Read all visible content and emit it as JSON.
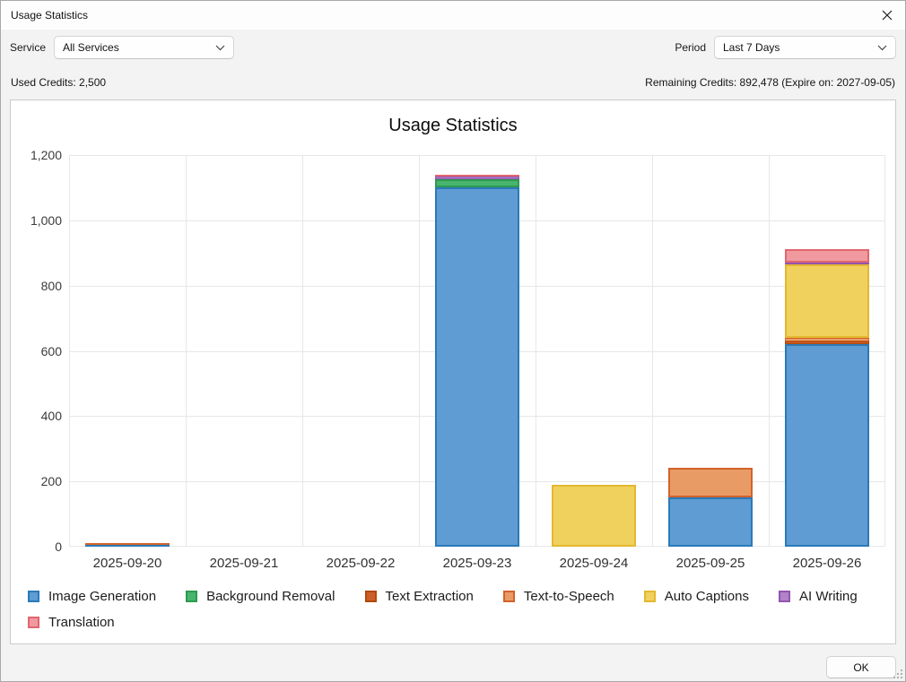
{
  "window": {
    "title": "Usage Statistics"
  },
  "filters": {
    "service_label": "Service",
    "service_value": "All Services",
    "period_label": "Period",
    "period_value": "Last 7 Days"
  },
  "credits": {
    "used": "Used Credits: 2,500",
    "remaining": "Remaining Credits: 892,478 (Expire on: 2027-09-05)"
  },
  "footer": {
    "ok_label": "OK"
  },
  "chart_data": {
    "type": "bar",
    "stacked": true,
    "title": "Usage Statistics",
    "categories": [
      "2025-09-20",
      "2025-09-21",
      "2025-09-22",
      "2025-09-23",
      "2025-09-24",
      "2025-09-25",
      "2025-09-26"
    ],
    "series": [
      {
        "name": "Image Generation",
        "fill": "#5e9cd3",
        "border": "#2a7ab9",
        "values": [
          5,
          0,
          0,
          1100,
          0,
          150,
          620
        ]
      },
      {
        "name": "Background Removal",
        "fill": "#47b56e",
        "border": "#2d9a50",
        "values": [
          0,
          0,
          0,
          25,
          0,
          0,
          0
        ]
      },
      {
        "name": "Text Extraction",
        "fill": "#ce5f29",
        "border": "#b04a0a",
        "values": [
          0,
          0,
          0,
          0,
          0,
          0,
          8
        ]
      },
      {
        "name": "Text-to-Speech",
        "fill": "#e99b66",
        "border": "#d2622a",
        "values": [
          3,
          0,
          0,
          0,
          0,
          90,
          10
        ]
      },
      {
        "name": "Auto Captions",
        "fill": "#f0d15e",
        "border": "#e4b82f",
        "values": [
          0,
          0,
          0,
          0,
          190,
          0,
          225
        ]
      },
      {
        "name": "AI Writing",
        "fill": "#b183c8",
        "border": "#9355b0",
        "values": [
          0,
          0,
          0,
          8,
          0,
          0,
          6
        ]
      },
      {
        "name": "Translation",
        "fill": "#f09aa0",
        "border": "#e2666f",
        "values": [
          0,
          0,
          0,
          5,
          0,
          0,
          40
        ]
      }
    ],
    "ylim": [
      0,
      1200
    ],
    "ytick_interval": 200,
    "ytick_labels": [
      "0",
      "200",
      "400",
      "600",
      "800",
      "1,000",
      "1,200"
    ],
    "grid": true,
    "legend_position": "bottom"
  }
}
